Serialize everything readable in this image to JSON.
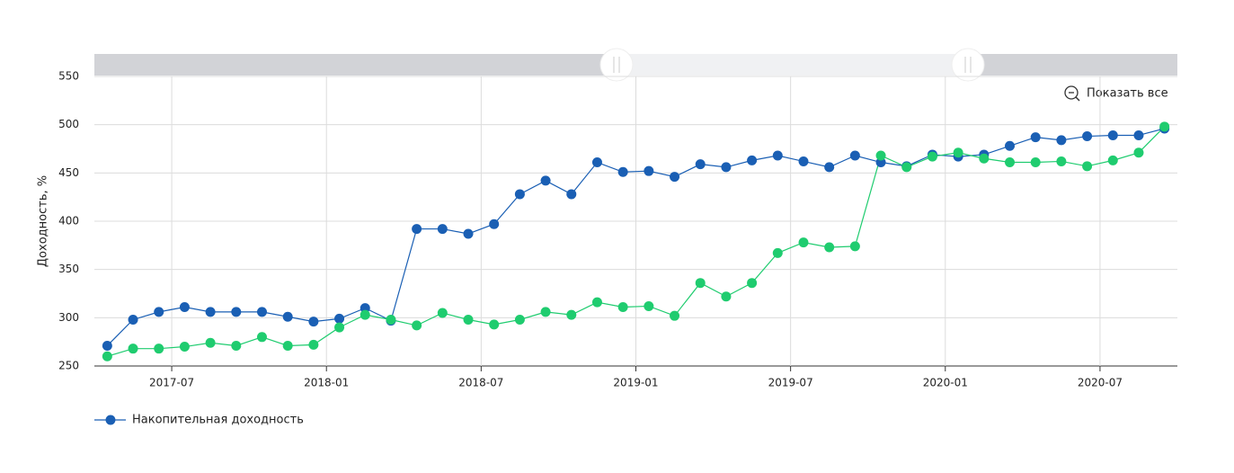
{
  "chart_data": {
    "type": "line",
    "y_label": "Доходность, %",
    "reset_button": "Показать все",
    "x": [
      "2017-04",
      "2017-05",
      "2017-06",
      "2017-07",
      "2017-08",
      "2017-09",
      "2017-10",
      "2017-11",
      "2017-12",
      "2018-01",
      "2018-02",
      "2018-03",
      "2018-04",
      "2018-05",
      "2018-06",
      "2018-07",
      "2018-08",
      "2018-09",
      "2018-10",
      "2018-11",
      "2018-12",
      "2019-01",
      "2019-02",
      "2019-03",
      "2019-04",
      "2019-05",
      "2019-06",
      "2019-07",
      "2019-08",
      "2019-09",
      "2019-10",
      "2019-11",
      "2019-12",
      "2020-01",
      "2020-02",
      "2020-03",
      "2020-04",
      "2020-05",
      "2020-06",
      "2020-07",
      "2020-08",
      "2020-09"
    ],
    "series": [
      {
        "name": "Накопительная доходность",
        "color": "#1a5fb4",
        "values": [
          271,
          298,
          306,
          311,
          306,
          306,
          306,
          301,
          296,
          299,
          310,
          297,
          392,
          392,
          387,
          397,
          428,
          442,
          428,
          461,
          451,
          452,
          446,
          459,
          456,
          463,
          468,
          462,
          456,
          468,
          461,
          457,
          469,
          467,
          469,
          478,
          487,
          484,
          488,
          489,
          489,
          496
        ]
      },
      {
        "color": "#1fcc6f",
        "values": [
          260,
          268,
          268,
          270,
          274,
          271,
          280,
          271,
          272,
          290,
          303,
          298,
          292,
          305,
          298,
          293,
          298,
          306,
          303,
          316,
          311,
          312,
          302,
          336,
          322,
          336,
          367,
          378,
          373,
          374,
          468,
          456,
          467,
          471,
          465,
          461,
          461,
          462,
          457,
          463,
          471,
          498
        ]
      }
    ],
    "xlim": [
      "2017-04",
      "2020-10"
    ],
    "xticks": [
      "2017-07",
      "2018-01",
      "2018-07",
      "2019-01",
      "2019-07",
      "2020-01",
      "2020-07"
    ],
    "ylim": [
      250,
      550
    ],
    "yticks": [
      250,
      300,
      350,
      400,
      450,
      500,
      550
    ],
    "grid": true
  }
}
